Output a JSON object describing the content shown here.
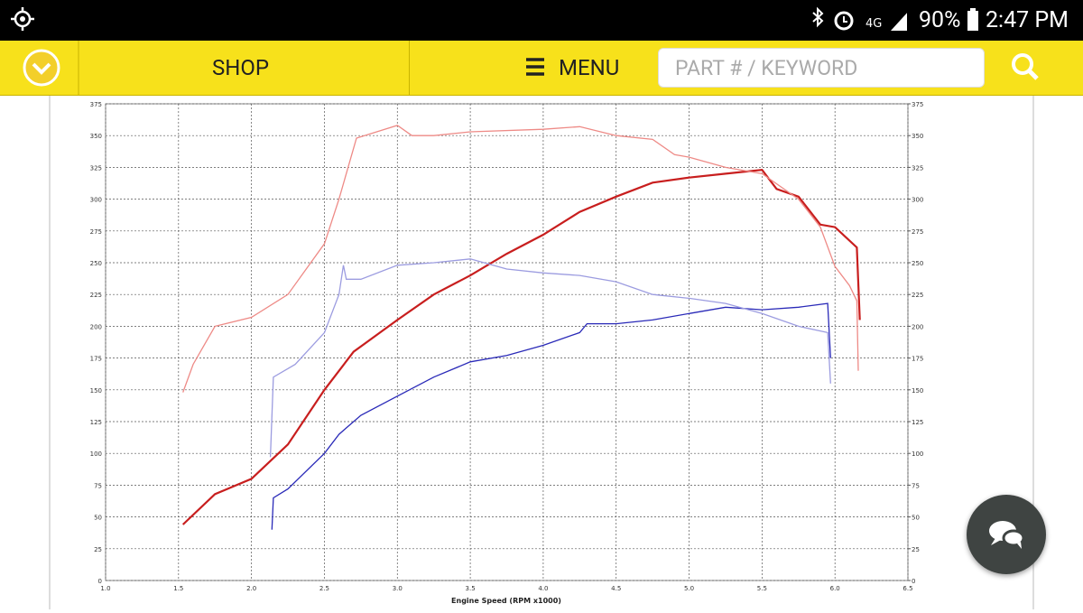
{
  "status_bar": {
    "battery": "90%",
    "time": "2:47 PM"
  },
  "nav": {
    "shop": "SHOP",
    "menu": "MENU",
    "search_placeholder": "PART # / KEYWORD"
  },
  "chart_data": {
    "type": "line",
    "x_label": "Engine Speed (RPM x1000)",
    "xlim": [
      1.0,
      6.5
    ],
    "xticks": [
      {
        "value": 1,
        "label": "1.0"
      },
      1.5,
      {
        "value": 2,
        "label": "2.0"
      },
      2.5,
      {
        "value": 3,
        "label": "3.0"
      },
      3.5,
      {
        "value": 4,
        "label": "4.0"
      },
      4.5,
      {
        "value": 5,
        "label": "5.0"
      },
      5.5,
      {
        "value": 6,
        "label": "6.0"
      },
      6.5
    ],
    "ylim": [
      0,
      375
    ],
    "yticks": [
      0,
      25,
      50,
      75,
      100,
      125,
      150,
      175,
      200,
      225,
      250,
      275,
      300,
      325,
      350,
      375
    ],
    "y2lim": [
      0,
      375
    ],
    "y2ticks": [
      0,
      25,
      50,
      75,
      100,
      125,
      150,
      175,
      200,
      225,
      250,
      275,
      300,
      325,
      350,
      375
    ],
    "grid": true,
    "series": [
      {
        "color": "#c81e1e",
        "x": [
          1.53,
          1.75,
          2.0,
          2.25,
          2.5,
          2.7,
          3.0,
          3.25,
          3.5,
          3.75,
          4.0,
          4.25,
          4.5,
          4.75,
          5.0,
          5.25,
          5.5,
          5.6,
          5.75,
          5.9,
          6.0,
          6.15,
          6.17
        ],
        "values": [
          44,
          68,
          80,
          107,
          150,
          180,
          205,
          225,
          240,
          257,
          272,
          290,
          302,
          313,
          317,
          320,
          323,
          308,
          302,
          280,
          278,
          262,
          205
        ]
      },
      {
        "color": "#ee8a86",
        "x": [
          1.53,
          1.6,
          1.75,
          2.0,
          2.25,
          2.5,
          2.6,
          2.72,
          3.0,
          3.1,
          3.25,
          3.5,
          4.0,
          4.25,
          4.5,
          4.75,
          4.9,
          5.0,
          5.25,
          5.5,
          5.75,
          5.9,
          6.0,
          6.1,
          6.15,
          6.16
        ],
        "values": [
          148,
          170,
          200,
          207,
          225,
          265,
          300,
          348,
          358,
          350,
          350,
          353,
          355,
          357,
          350,
          347,
          335,
          333,
          325,
          320,
          300,
          278,
          247,
          232,
          220,
          165
        ]
      },
      {
        "color": "#2a2ab8",
        "x": [
          2.14,
          2.15,
          2.25,
          2.5,
          2.6,
          2.65,
          2.75,
          3.0,
          3.25,
          3.5,
          3.75,
          4.0,
          4.25,
          4.3,
          4.5,
          4.75,
          5.0,
          5.25,
          5.5,
          5.75,
          5.95,
          5.97
        ],
        "values": [
          40,
          65,
          72,
          100,
          115,
          120,
          130,
          145,
          160,
          172,
          177,
          185,
          195,
          202,
          202,
          205,
          210,
          215,
          213,
          215,
          218,
          175
        ]
      },
      {
        "color": "#9c9ce0",
        "x": [
          2.13,
          2.15,
          2.3,
          2.5,
          2.6,
          2.63,
          2.65,
          2.75,
          3.0,
          3.25,
          3.5,
          3.75,
          4.0,
          4.25,
          4.5,
          4.75,
          5.0,
          5.25,
          5.5,
          5.75,
          5.95,
          5.97
        ],
        "values": [
          97,
          160,
          170,
          195,
          225,
          248,
          237,
          237,
          248,
          250,
          253,
          245,
          242,
          240,
          235,
          225,
          222,
          218,
          210,
          200,
          195,
          155
        ]
      }
    ]
  }
}
